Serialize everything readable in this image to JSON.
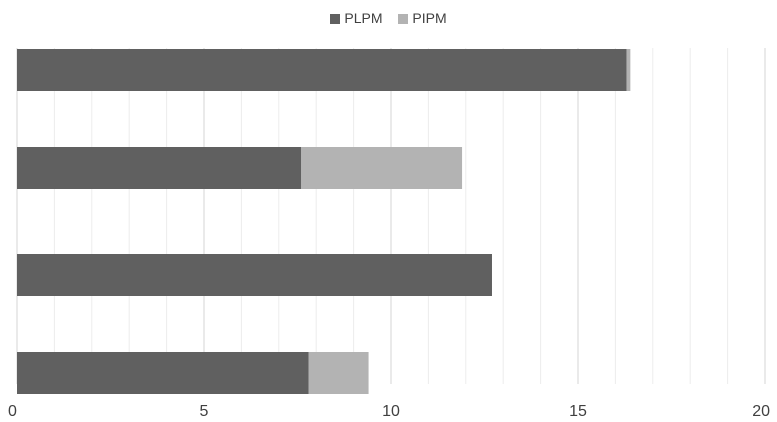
{
  "chart_data": {
    "type": "bar",
    "orientation": "horizontal",
    "stacked": true,
    "title": "",
    "xlabel": "",
    "ylabel": "",
    "xlim": [
      0,
      20
    ],
    "x_ticks": [
      0,
      5,
      10,
      15,
      20
    ],
    "minor_tick_step": 1,
    "grid": true,
    "legend_position": "top",
    "categories": [
      "",
      "",
      "",
      ""
    ],
    "series": [
      {
        "name": "PLPM",
        "color": "#606060",
        "values": [
          16.3,
          7.6,
          12.7,
          7.8
        ]
      },
      {
        "name": "PIPM",
        "color": "#b3b3b3",
        "values": [
          0.1,
          4.3,
          0.0,
          1.6
        ]
      }
    ]
  }
}
